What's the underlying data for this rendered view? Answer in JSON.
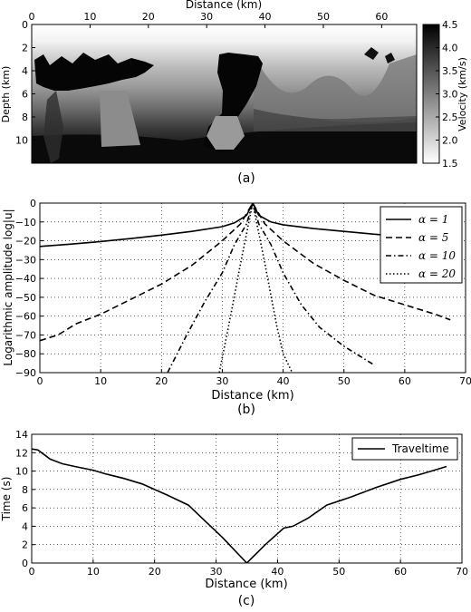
{
  "chart_data": [
    {
      "panel": "a",
      "type": "heatmap",
      "panel_label": "(a)",
      "xlabel": "Distance (km)",
      "ylabel": "Depth (km)",
      "colorbar_label": "Velocity (km/s)",
      "xlim": [
        0,
        66
      ],
      "ylim": [
        12,
        0
      ],
      "x_ticks": [
        0,
        10,
        20,
        30,
        40,
        50,
        60
      ],
      "y_ticks": [
        0,
        2,
        4,
        6,
        8,
        10
      ],
      "colorbar_range": [
        1.5,
        4.5
      ],
      "colorbar_ticks": [
        "4.5",
        "4.0",
        "3.5",
        "3.0",
        "2.5",
        "2.0",
        "1.5"
      ],
      "colormap": "grayscale (1.5 = white, 4.5 = black)",
      "x_tick_position": "top"
    },
    {
      "panel": "b",
      "type": "line",
      "panel_label": "(b)",
      "xlabel": "Distance (km)",
      "ylabel": "Logarithmic amplitude log|u|",
      "xlim": [
        0,
        70
      ],
      "ylim": [
        -90,
        0
      ],
      "x_ticks": [
        0,
        10,
        20,
        30,
        40,
        50,
        60,
        70
      ],
      "y_ticks": [
        0,
        -10,
        -20,
        -30,
        -40,
        -50,
        -60,
        -70,
        -80,
        -90
      ],
      "grid": true,
      "legend_placement": "top-right",
      "series": [
        {
          "name": "α = 1",
          "style": "solid",
          "x": [
            0,
            5,
            10,
            15,
            20,
            25,
            30,
            32,
            34,
            35,
            36,
            38,
            40,
            45,
            50,
            55,
            60,
            63,
            67.5
          ],
          "y": [
            -23,
            -21.8,
            -20.4,
            -18.8,
            -17,
            -15,
            -12.5,
            -10.5,
            -6.5,
            0,
            -6.5,
            -10,
            -11.5,
            -13.5,
            -15,
            -16.5,
            -17.8,
            -18.5,
            -19.5
          ]
        },
        {
          "name": "α = 5",
          "style": "dashed",
          "x": [
            0,
            3,
            6,
            10,
            15,
            20,
            25,
            30,
            33,
            35,
            37,
            40,
            45,
            50,
            55,
            60,
            65,
            67.5
          ],
          "y": [
            -73,
            -70,
            -64,
            -59,
            -51,
            -43,
            -33,
            -20,
            -11,
            0,
            -11,
            -20,
            -32,
            -41,
            -49,
            -54,
            -59,
            -62
          ]
        },
        {
          "name": "α = 10",
          "style": "dash-dot",
          "x": [
            21,
            24,
            27,
            30,
            32,
            34,
            35,
            36,
            38,
            40,
            43,
            46,
            50,
            53,
            55
          ],
          "y": [
            -90,
            -71,
            -53,
            -37,
            -22,
            -11,
            0,
            -11,
            -22,
            -37,
            -54,
            -66,
            -76,
            -82,
            -86
          ]
        },
        {
          "name": "α = 20",
          "style": "dotted",
          "x": [
            29.5,
            30,
            31,
            32,
            33,
            34,
            35,
            36,
            37,
            38,
            39,
            40,
            41.5
          ],
          "y": [
            -90,
            -82,
            -66,
            -49,
            -32,
            -16,
            0,
            -16,
            -32,
            -49,
            -66,
            -80,
            -90
          ]
        }
      ]
    },
    {
      "panel": "c",
      "type": "line",
      "panel_label": "(c)",
      "xlabel": "Distance (km)",
      "ylabel": "Time (s)",
      "xlim": [
        0,
        70
      ],
      "ylim": [
        0,
        14
      ],
      "x_ticks": [
        0,
        10,
        20,
        30,
        40,
        50,
        60,
        70
      ],
      "y_ticks": [
        0,
        2,
        4,
        6,
        8,
        10,
        12,
        14
      ],
      "grid": true,
      "legend_placement": "top-right",
      "series": [
        {
          "name": "Traveltime",
          "style": "solid",
          "x": [
            0,
            1,
            2,
            3,
            5,
            7,
            10,
            12,
            15,
            18,
            20,
            22,
            25.5,
            28,
            31,
            35,
            38,
            41,
            42.5,
            45,
            48,
            52,
            56,
            60,
            63,
            65,
            67.5
          ],
          "y": [
            12.4,
            12.3,
            11.8,
            11.3,
            10.8,
            10.5,
            10.1,
            9.7,
            9.2,
            8.6,
            8.0,
            7.4,
            6.3,
            4.7,
            2.8,
            0.0,
            2.0,
            3.8,
            4.0,
            4.9,
            6.3,
            7.2,
            8.2,
            9.1,
            9.6,
            10.0,
            10.5
          ]
        }
      ]
    }
  ]
}
